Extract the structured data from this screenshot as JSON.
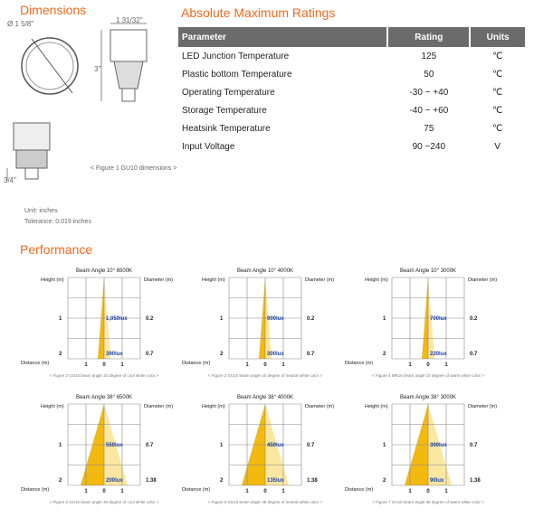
{
  "dimensions": {
    "title": "Dimensions",
    "diameter": "Ø 1 5/8\"",
    "width": "1 31/32\"",
    "height": "3\"",
    "base_height": "3/4\"",
    "caption": "< Figure 1 GU10 dimensions >",
    "unit": "Unit: inches",
    "tolerance": "Tolerance:   0.019 inches"
  },
  "ratings": {
    "title": "Absolute Maximum Ratings",
    "header": [
      "Parameter",
      "Rating",
      "Units"
    ],
    "rows": [
      [
        "LED Junction Temperature",
        "125",
        "℃"
      ],
      [
        "Plastic bottom Temperature",
        "50",
        "℃"
      ],
      [
        "Operating Temperature",
        "-30 ~ +40",
        "℃"
      ],
      [
        "Storage Temperature",
        "-40 ~ +60",
        "℃"
      ],
      [
        "Heatsink Temperature",
        "75",
        "℃"
      ],
      [
        "Input Voltage",
        "90 ~240",
        "V"
      ]
    ]
  },
  "performance": {
    "title": "Performance",
    "charts": [
      {
        "title": "Beam Angle 10°  6500K",
        "y_label": "Height (m)",
        "y2_label": "Diameter (m)",
        "heights": [
          "1",
          "2"
        ],
        "diameters": [
          "0.2",
          "0.7"
        ],
        "lux": [
          "1,050lux",
          "390lux"
        ],
        "x_label": "Distance (m)",
        "x_ticks": [
          "1",
          "0",
          "1"
        ],
        "caption": "< Figure 2 GU10 beam angle 10 degree of cool white color >"
      },
      {
        "title": "Beam Angle 10°  4000K",
        "y_label": "Height (m)",
        "y2_label": "Diameter (m)",
        "heights": [
          "1",
          "2"
        ],
        "diameters": [
          "0.2",
          "0.7"
        ],
        "lux": [
          "900lux",
          "300lux"
        ],
        "x_label": "Distance (m)",
        "x_ticks": [
          "1",
          "0",
          "1"
        ],
        "caption": "< Figure 3 GU10 beam angle 10 degree of neutral white color >"
      },
      {
        "title": "Beam Angle 10°  3000K",
        "y_label": "Height (m)",
        "y2_label": "Diameter (m)",
        "heights": [
          "1",
          "2"
        ],
        "diameters": [
          "0.2",
          "0.7"
        ],
        "lux": [
          "700lux",
          "220lux"
        ],
        "x_label": "Distance (m)",
        "x_ticks": [
          "1",
          "0",
          "1"
        ],
        "caption": "< Figure 4 MR16 beam angle 10 degree of warm white color >"
      },
      {
        "title": "Beam Angle 38°  6500K",
        "y_label": "Height (m)",
        "y2_label": "Diameter (m)",
        "heights": [
          "1",
          "2"
        ],
        "diameters": [
          "0.7",
          "1.38"
        ],
        "lux": [
          "550lux",
          "200lux"
        ],
        "x_label": "Distance (m)",
        "x_ticks": [
          "1",
          "0",
          "1"
        ],
        "caption": "< Figure 5 GU10 beam angle 38 degree of cool white color >"
      },
      {
        "title": "Beam Angle 38°  4000K",
        "y_label": "Height (m)",
        "y2_label": "Diameter (m)",
        "heights": [
          "1",
          "2"
        ],
        "diameters": [
          "0.7",
          "1.38"
        ],
        "lux": [
          "450lux",
          "135lux"
        ],
        "x_label": "Distance (m)",
        "x_ticks": [
          "1",
          "0",
          "1"
        ],
        "caption": "< Figure 6 GU10 beam angle 38 degree of neutral white color >"
      },
      {
        "title": "Beam Angle 38°  3000K",
        "y_label": "Height (m)",
        "y2_label": "Diameter (m)",
        "heights": [
          "1",
          "2"
        ],
        "diameters": [
          "0.7",
          "1.38"
        ],
        "lux": [
          "300lux",
          "90lux"
        ],
        "x_label": "Distance (m)",
        "x_ticks": [
          "1",
          "0",
          "1"
        ],
        "caption": "< Figure 7 GU10 beam angle 38 degree of warm white color >"
      }
    ]
  }
}
